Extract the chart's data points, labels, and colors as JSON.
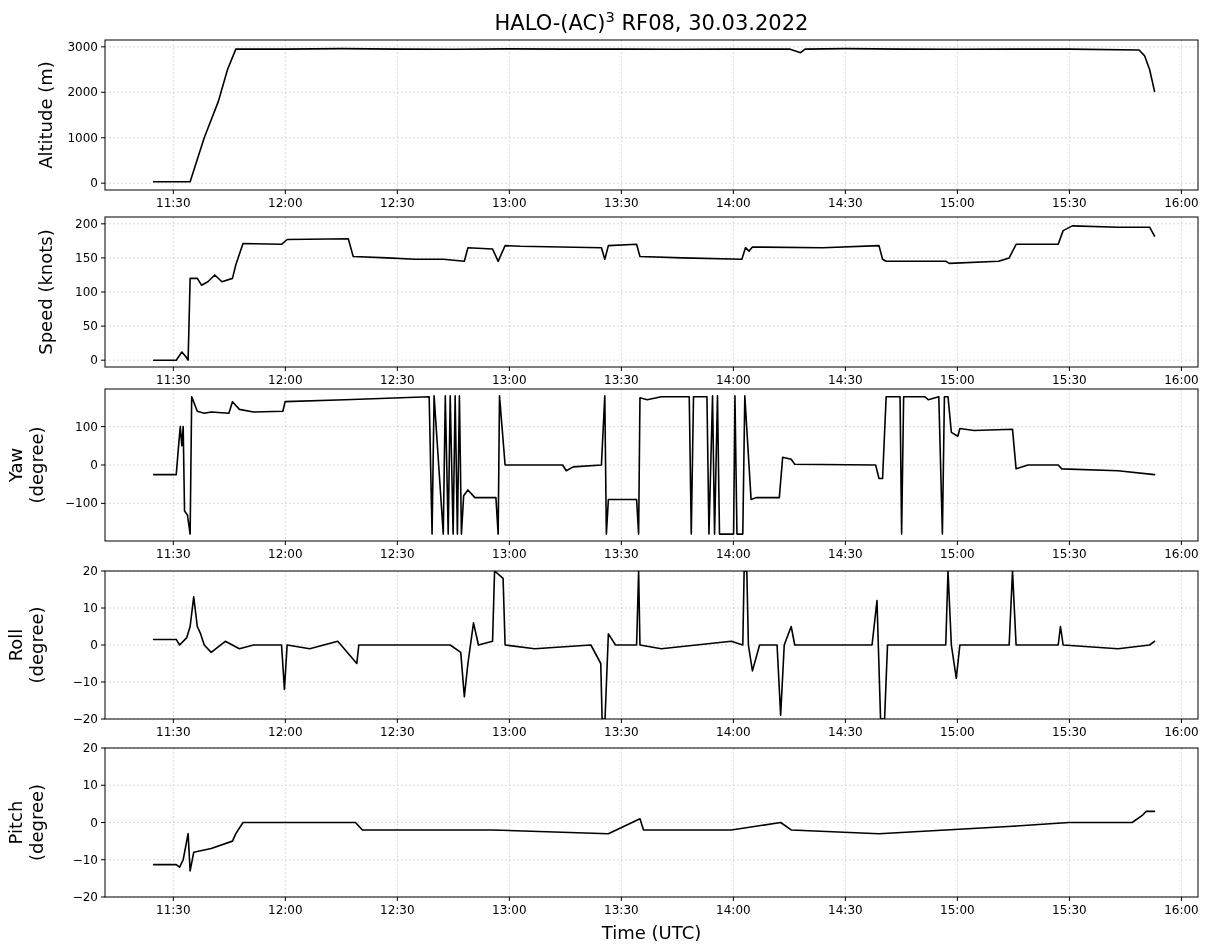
{
  "chart_data": [
    {
      "type": "line",
      "title": "HALO-(AC)$^{3}$ RF08, 30.03.2022",
      "ylabel": "Altitude (m)",
      "color": "#000000",
      "grid": true,
      "xlim": [
        11.195,
        16.074
      ],
      "ylim": [
        -150,
        3150
      ],
      "yticks": [
        0,
        1000,
        2000,
        3000
      ],
      "xticks": [
        {
          "value": 11.5,
          "label": "11:30"
        },
        {
          "value": 12,
          "label": "12:00"
        },
        {
          "value": 12.5,
          "label": "12:30"
        },
        {
          "value": 13,
          "label": "13:00"
        },
        {
          "value": 13.5,
          "label": "13:30"
        },
        {
          "value": 14,
          "label": "14:00"
        },
        {
          "value": 14.5,
          "label": "14:30"
        },
        {
          "value": 15,
          "label": "15:00"
        },
        {
          "value": 15.5,
          "label": "15:30"
        },
        {
          "value": 16,
          "label": "16:00"
        }
      ],
      "x": [
        11.412,
        11.575,
        11.638,
        11.701,
        11.742,
        11.779,
        12.0,
        12.25,
        12.5,
        12.75,
        13.0,
        13.25,
        13.5,
        13.75,
        14.0,
        14.25,
        14.3,
        14.32,
        14.5,
        14.75,
        15.0,
        15.25,
        15.5,
        15.811,
        15.836,
        15.858,
        15.88
      ],
      "values": [
        30,
        30,
        1000,
        1800,
        2500,
        2950,
        2950,
        2960,
        2950,
        2945,
        2955,
        2950,
        2950,
        2945,
        2950,
        2950,
        2870,
        2950,
        2960,
        2950,
        2945,
        2950,
        2950,
        2930,
        2800,
        2500,
        2020
      ]
    },
    {
      "type": "line",
      "ylabel": "Speed (knots)",
      "color": "#000000",
      "grid": true,
      "xlim": [
        11.195,
        16.074
      ],
      "ylim": [
        -10,
        210
      ],
      "yticks": [
        0,
        50,
        100,
        150,
        200
      ],
      "xticks": [
        {
          "value": 11.5,
          "label": "11:30"
        },
        {
          "value": 12,
          "label": "12:00"
        },
        {
          "value": 12.5,
          "label": "12:30"
        },
        {
          "value": 13,
          "label": "13:00"
        },
        {
          "value": 13.5,
          "label": "13:30"
        },
        {
          "value": 14,
          "label": "14:00"
        },
        {
          "value": 14.5,
          "label": "14:30"
        },
        {
          "value": 15,
          "label": "15:00"
        },
        {
          "value": 15.5,
          "label": "15:30"
        },
        {
          "value": 16,
          "label": "16:00"
        }
      ],
      "x": [
        11.412,
        11.513,
        11.538,
        11.556,
        11.566,
        11.575,
        11.607,
        11.626,
        11.654,
        11.685,
        11.717,
        11.764,
        11.779,
        11.811,
        11.983,
        12.008,
        12.281,
        12.303,
        12.454,
        12.579,
        12.705,
        12.799,
        12.815,
        12.925,
        12.95,
        12.981,
        13.05,
        13.411,
        13.426,
        13.442,
        13.568,
        13.583,
        13.772,
        14.038,
        14.054,
        14.07,
        14.085,
        14.399,
        14.65,
        14.666,
        14.682,
        14.948,
        14.964,
        15.184,
        15.231,
        15.262,
        15.45,
        15.472,
        15.513,
        15.717,
        15.858,
        15.88
      ],
      "values": [
        0,
        0,
        12,
        5,
        0,
        120,
        120,
        110,
        115,
        125,
        115,
        120,
        140,
        171,
        170,
        177,
        178,
        152,
        150,
        148,
        148,
        145,
        165,
        163,
        145,
        168,
        167,
        165,
        148,
        168,
        170,
        152,
        150,
        148,
        165,
        160,
        166,
        165,
        168,
        148,
        145,
        145,
        142,
        145,
        150,
        170,
        170,
        190,
        197,
        195,
        195,
        182
      ]
    },
    {
      "type": "line",
      "ylabel": "Yaw\n(degree)",
      "color": "#000000",
      "grid": true,
      "xlim": [
        11.195,
        16.074
      ],
      "ylim": [
        -198,
        198
      ],
      "yticks": [
        {
          "value": -100,
          "label": "−100"
        },
        0,
        100
      ],
      "xticks": [
        {
          "value": 11.5,
          "label": "11:30"
        },
        {
          "value": 12,
          "label": "12:00"
        },
        {
          "value": 12.5,
          "label": "12:30"
        },
        {
          "value": 13,
          "label": "13:00"
        },
        {
          "value": 13.5,
          "label": "13:30"
        },
        {
          "value": 14,
          "label": "14:00"
        },
        {
          "value": 14.5,
          "label": "14:30"
        },
        {
          "value": 15,
          "label": "15:00"
        },
        {
          "value": 15.5,
          "label": "15:30"
        },
        {
          "value": 16,
          "label": "16:00"
        }
      ],
      "x": [
        11.412,
        11.513,
        11.522,
        11.531,
        11.538,
        11.544,
        11.55,
        11.563,
        11.575,
        11.582,
        11.607,
        11.638,
        11.669,
        11.748,
        11.764,
        11.795,
        11.858,
        11.989,
        11.999,
        12.266,
        12.642,
        12.655,
        12.664,
        12.705,
        12.714,
        12.727,
        12.736,
        12.749,
        12.758,
        12.768,
        12.777,
        12.786,
        12.796,
        12.815,
        12.846,
        12.94,
        12.95,
        12.956,
        12.981,
        13.238,
        13.254,
        13.285,
        13.411,
        13.426,
        13.433,
        13.442,
        13.568,
        13.577,
        13.583,
        13.615,
        13.678,
        13.803,
        13.812,
        13.822,
        13.882,
        13.891,
        13.907,
        13.916,
        13.929,
        13.938,
        14.001,
        14.007,
        14.016,
        14.042,
        14.051,
        14.079,
        14.101,
        14.205,
        14.22,
        14.258,
        14.274,
        14.635,
        14.65,
        14.666,
        14.682,
        14.744,
        14.751,
        14.76,
        14.854,
        14.87,
        14.917,
        14.933,
        14.942,
        14.958,
        14.973,
        15.002,
        15.011,
        15.074,
        15.246,
        15.262,
        15.315,
        15.45,
        15.466,
        15.717,
        15.88
      ],
      "values": [
        -25,
        -25,
        40,
        100,
        50,
        100,
        -120,
        -130,
        -180,
        178,
        140,
        135,
        138,
        135,
        165,
        145,
        138,
        140,
        165,
        170,
        178,
        -180,
        180,
        -180,
        180,
        -180,
        180,
        -180,
        180,
        -180,
        180,
        -180,
        -80,
        -65,
        -85,
        -85,
        -180,
        180,
        0,
        0,
        -15,
        -5,
        0,
        180,
        -180,
        -90,
        -90,
        -180,
        175,
        170,
        178,
        178,
        -180,
        178,
        178,
        -180,
        180,
        -180,
        180,
        -180,
        -180,
        180,
        -180,
        -180,
        180,
        -90,
        -85,
        -85,
        20,
        15,
        2,
        0,
        -35,
        -35,
        178,
        178,
        -180,
        178,
        178,
        170,
        178,
        -180,
        178,
        178,
        85,
        75,
        95,
        90,
        93,
        -10,
        0,
        0,
        -10,
        -15,
        -25
      ]
    },
    {
      "type": "line",
      "ylabel": "Roll\n(degree)",
      "color": "#000000",
      "grid": true,
      "xlim": [
        11.195,
        16.074
      ],
      "ylim": [
        -20,
        20
      ],
      "yticks": [
        {
          "value": -20,
          "label": "−20"
        },
        {
          "value": -10,
          "label": "−10"
        },
        0,
        10,
        20
      ],
      "xticks": [
        {
          "value": 11.5,
          "label": "11:30"
        },
        {
          "value": 12,
          "label": "12:00"
        },
        {
          "value": 12.5,
          "label": "12:30"
        },
        {
          "value": 13,
          "label": "13:00"
        },
        {
          "value": 13.5,
          "label": "13:30"
        },
        {
          "value": 14,
          "label": "14:00"
        },
        {
          "value": 14.5,
          "label": "14:30"
        },
        {
          "value": 15,
          "label": "15:00"
        },
        {
          "value": 15.5,
          "label": "15:30"
        },
        {
          "value": 16,
          "label": "16:00"
        }
      ],
      "x": [
        11.412,
        11.513,
        11.528,
        11.56,
        11.575,
        11.591,
        11.607,
        11.622,
        11.638,
        11.669,
        11.732,
        11.795,
        11.858,
        11.983,
        11.996,
        12.008,
        12.109,
        12.234,
        12.319,
        12.328,
        12.485,
        12.736,
        12.783,
        12.799,
        12.815,
        12.84,
        12.862,
        12.925,
        12.934,
        12.972,
        12.981,
        13.113,
        13.364,
        13.408,
        13.414,
        13.427,
        13.442,
        13.474,
        13.568,
        13.577,
        13.583,
        13.678,
        13.991,
        14.042,
        14.048,
        14.06,
        14.067,
        14.085,
        14.117,
        14.195,
        14.211,
        14.227,
        14.258,
        14.274,
        14.619,
        14.641,
        14.657,
        14.675,
        14.688,
        14.948,
        14.958,
        14.973,
        14.995,
        15.011,
        15.231,
        15.246,
        15.262,
        15.45,
        15.46,
        15.472,
        15.717,
        15.858,
        15.88
      ],
      "values": [
        1.5,
        1.5,
        0,
        2,
        5,
        13,
        5,
        3,
        0,
        -2,
        1,
        -1,
        0,
        0,
        -12,
        0,
        -1,
        1,
        -5,
        0,
        0,
        0,
        -2,
        -14,
        -5,
        6,
        0,
        1,
        20,
        18,
        0,
        -1,
        0,
        -5,
        -20,
        -20,
        3,
        0,
        0,
        20,
        0,
        -1,
        1,
        0,
        20,
        20,
        0,
        -7,
        0,
        0,
        -19,
        0,
        5,
        0,
        0,
        12,
        -20,
        -20,
        0,
        0,
        20,
        0,
        -9,
        0,
        0,
        20,
        0,
        0,
        5,
        0,
        -1,
        0,
        1
      ]
    },
    {
      "type": "line",
      "ylabel": "Pitch\n(degree)",
      "xlabel": "Time (UTC)",
      "color": "#000000",
      "grid": true,
      "xlim": [
        11.195,
        16.074
      ],
      "ylim": [
        -20,
        20
      ],
      "yticks": [
        {
          "value": -20,
          "label": "−20"
        },
        {
          "value": -10,
          "label": "−10"
        },
        0,
        10,
        20
      ],
      "xticks": [
        {
          "value": 11.5,
          "label": "11:30"
        },
        {
          "value": 12,
          "label": "12:00"
        },
        {
          "value": 12.5,
          "label": "12:30"
        },
        {
          "value": 13,
          "label": "13:00"
        },
        {
          "value": 13.5,
          "label": "13:30"
        },
        {
          "value": 14,
          "label": "14:00"
        },
        {
          "value": 14.5,
          "label": "14:30"
        },
        {
          "value": 15,
          "label": "15:00"
        },
        {
          "value": 15.5,
          "label": "15:30"
        },
        {
          "value": 16,
          "label": "16:00"
        }
      ],
      "x": [
        11.412,
        11.513,
        11.528,
        11.544,
        11.566,
        11.575,
        11.591,
        11.669,
        11.764,
        11.779,
        11.811,
        11.983,
        12.077,
        12.313,
        12.344,
        12.736,
        12.925,
        13.442,
        13.583,
        13.599,
        13.991,
        14.211,
        14.258,
        14.65,
        14.948,
        15.246,
        15.498,
        15.78,
        15.827,
        15.843,
        15.88
      ],
      "values": [
        -11.3,
        -11.3,
        -12,
        -10,
        -3,
        -13,
        -8,
        -7,
        -5,
        -3,
        0,
        0,
        0,
        0,
        -2,
        -2,
        -2,
        -3,
        1,
        -2,
        -2,
        0,
        -2,
        -3,
        -2,
        -1,
        0,
        0,
        2,
        3,
        3
      ]
    }
  ]
}
